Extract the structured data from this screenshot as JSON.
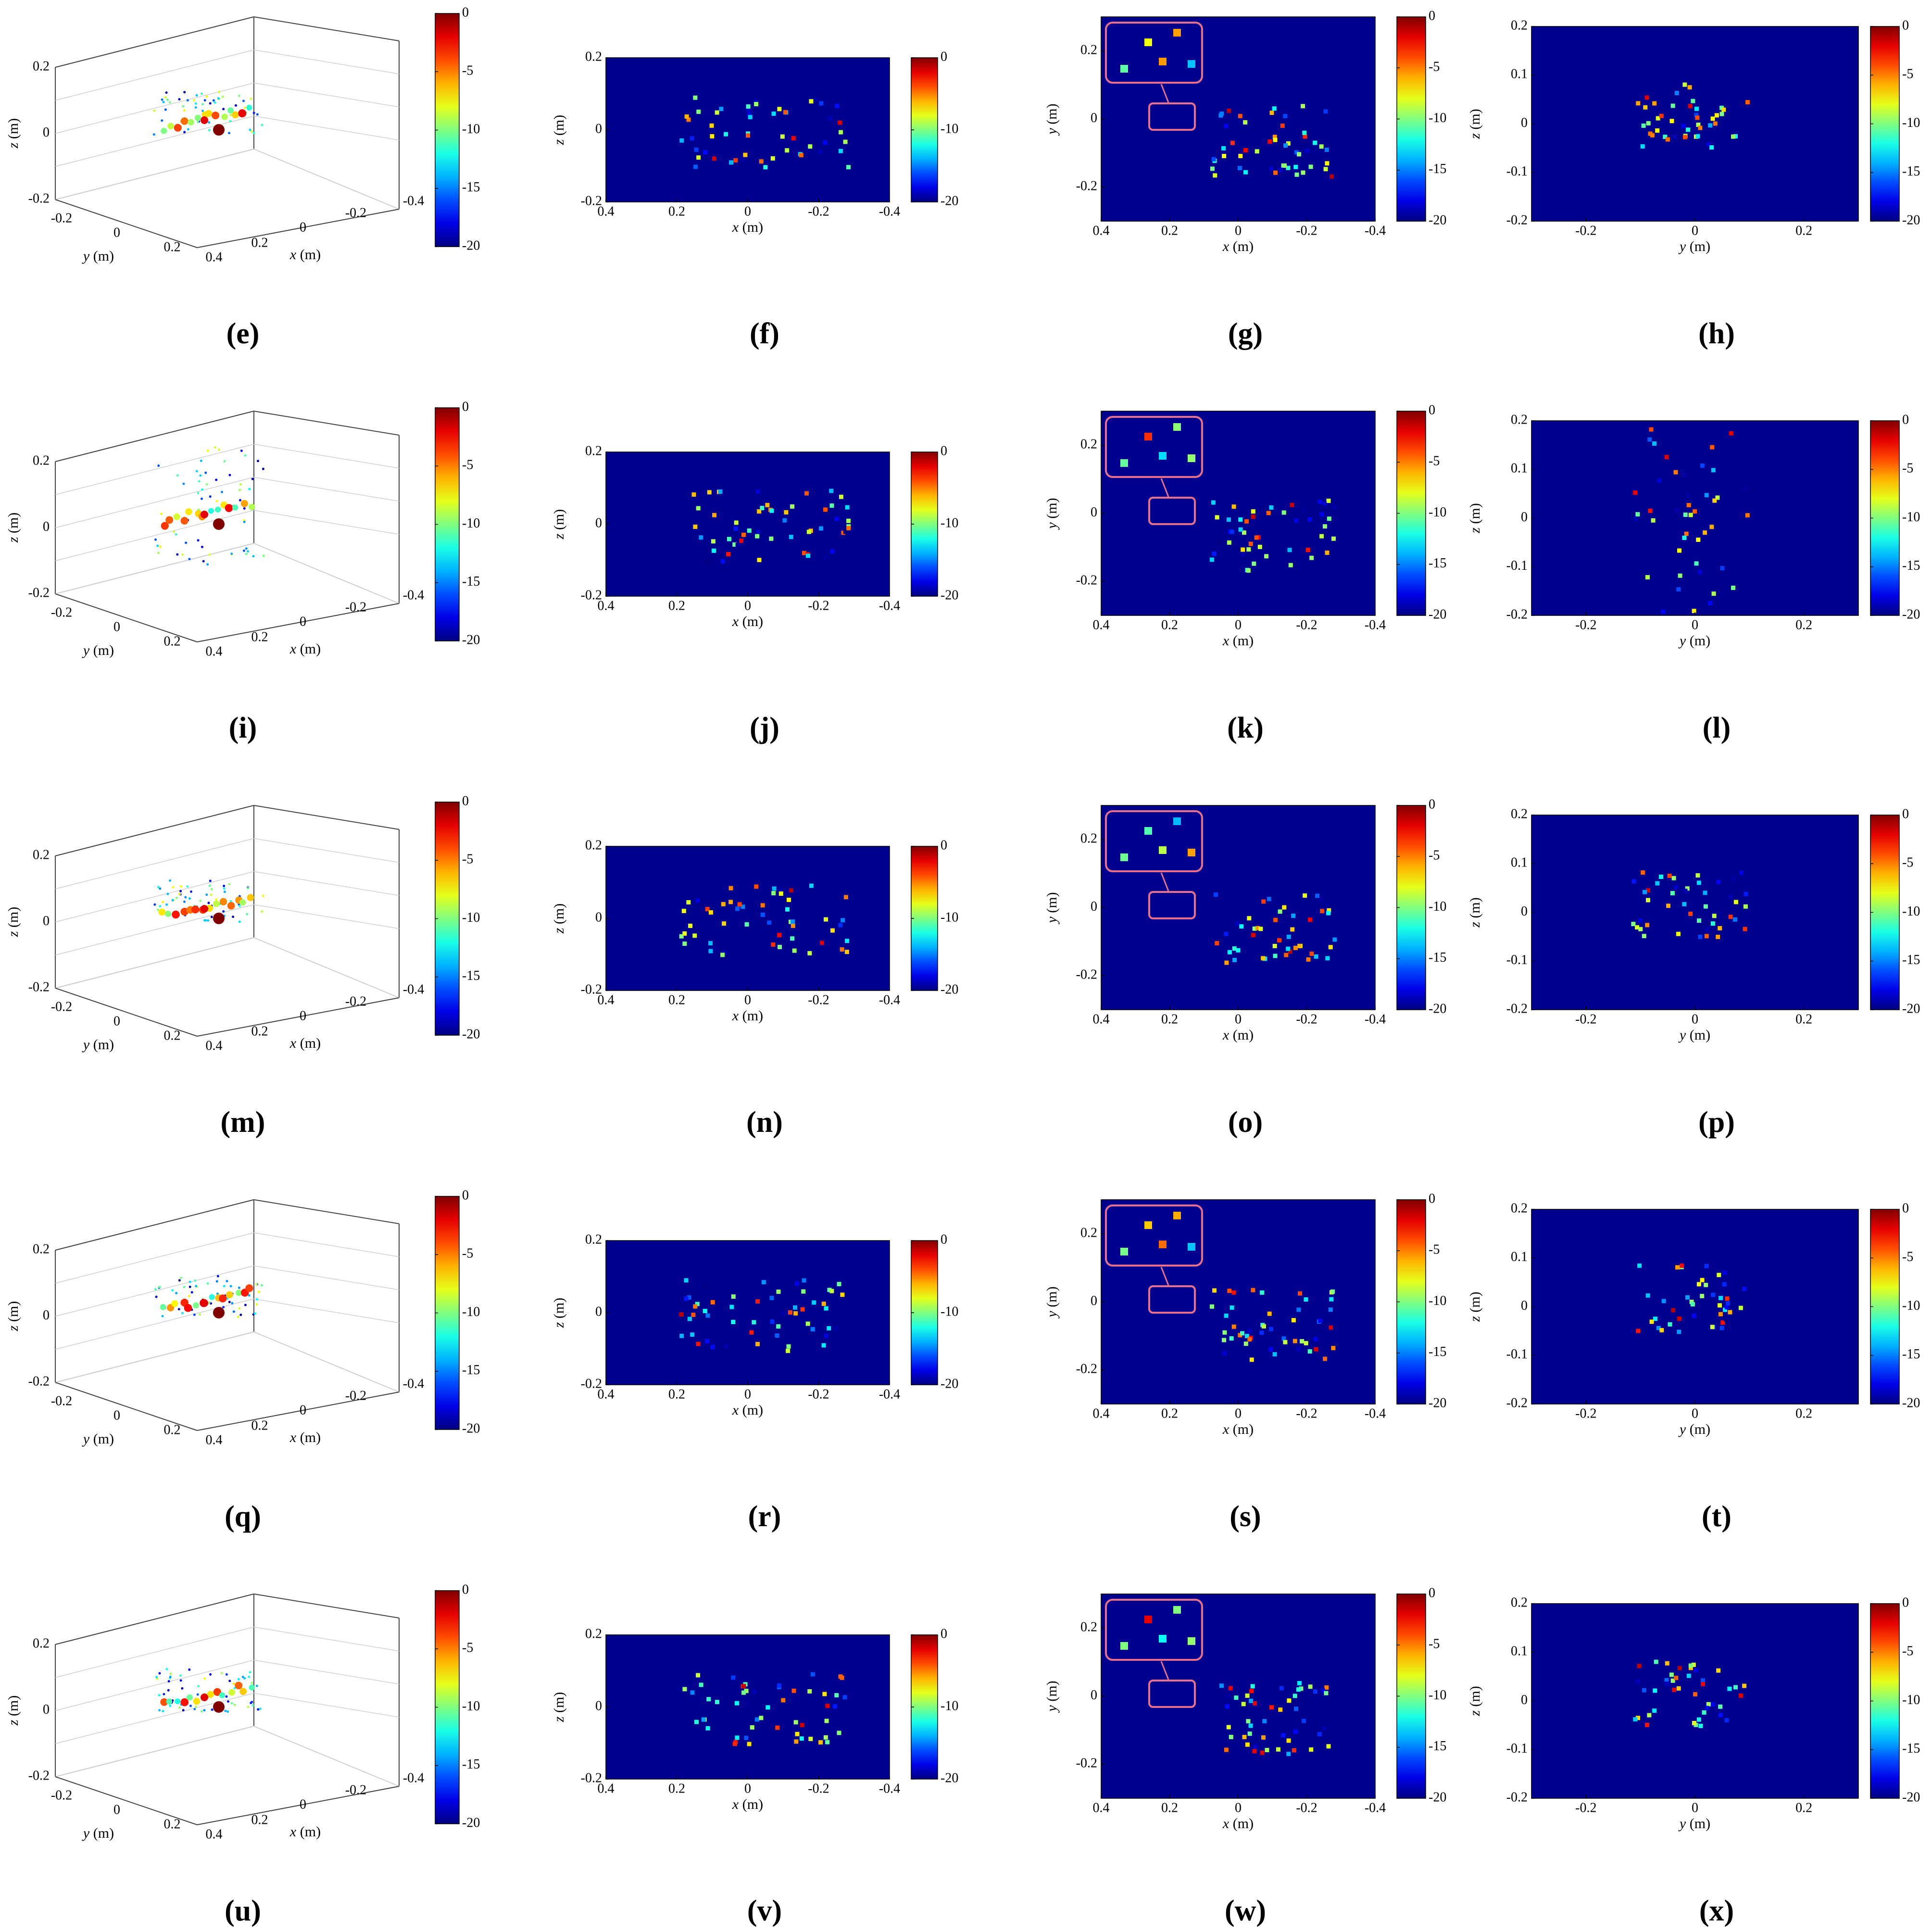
{
  "figure": {
    "cbar_ticks": [
      0,
      -5,
      -10,
      -15,
      -20
    ],
    "cbar_ticks_short": [
      0,
      -10,
      -20
    ],
    "rows": [
      {
        "row_index": 0,
        "labels": [
          "e",
          "f",
          "g",
          "h"
        ]
      },
      {
        "row_index": 1,
        "labels": [
          "i",
          "j",
          "k",
          "l"
        ]
      },
      {
        "row_index": 2,
        "labels": [
          "m",
          "n",
          "o",
          "p"
        ]
      },
      {
        "row_index": 3,
        "labels": [
          "q",
          "r",
          "s",
          "t"
        ]
      },
      {
        "row_index": 4,
        "labels": [
          "u",
          "v",
          "w",
          "x"
        ]
      }
    ],
    "colors": {
      "background": "#00008f",
      "inset_frame": "#e8708a",
      "grid3d": "#d0d0d0"
    }
  },
  "chart_data": [
    {
      "panel": "3d",
      "type": "scatter",
      "xlabel": "x (m)",
      "ylabel": "y (m)",
      "zlabel": "z (m)",
      "x_ticks": [
        0.4,
        0.2,
        0,
        -0.2,
        -0.4
      ],
      "y_ticks": [
        -0.2,
        0,
        0.2
      ],
      "z_ticks": [
        -0.2,
        0,
        0.2
      ],
      "colorbar": {
        "range": [
          -20,
          0
        ],
        "ticks": [
          0,
          -5,
          -10,
          -15,
          -20
        ]
      }
    },
    {
      "panel": "xz",
      "type": "heatmap",
      "xlabel": "x (m)",
      "ylabel": "z (m)",
      "xlim": [
        0.4,
        -0.4
      ],
      "ylim": [
        -0.2,
        0.2
      ],
      "x_ticks": [
        0.4,
        0.2,
        0,
        -0.2,
        -0.4
      ],
      "y_ticks": [
        -0.2,
        0,
        0.2
      ],
      "colorbar": {
        "range": [
          -20,
          0
        ],
        "ticks": [
          0,
          -10,
          -20
        ]
      }
    },
    {
      "panel": "xy",
      "type": "heatmap",
      "xlabel": "x (m)",
      "ylabel": "y (m)",
      "xlim": [
        0.4,
        -0.4
      ],
      "ylim": [
        -0.3,
        0.3
      ],
      "x_ticks": [
        0.4,
        0.2,
        0,
        -0.2,
        -0.4
      ],
      "y_ticks": [
        -0.2,
        0,
        0.2
      ],
      "colorbar": {
        "range": [
          -20,
          0
        ],
        "ticks": [
          0,
          -5,
          -10,
          -15,
          -20
        ]
      }
    },
    {
      "panel": "yz",
      "type": "heatmap",
      "xlabel": "y (m)",
      "ylabel": "z (m)",
      "xlim": [
        -0.3,
        0.3
      ],
      "ylim": [
        -0.2,
        0.2
      ],
      "x_ticks": [
        -0.2,
        0,
        0.2
      ],
      "y_ticks": [
        -0.2,
        -0.1,
        0,
        0.1,
        0.2
      ],
      "colorbar": {
        "range": [
          -20,
          0
        ],
        "ticks": [
          0,
          -5,
          -10,
          -15,
          -20
        ]
      }
    }
  ]
}
